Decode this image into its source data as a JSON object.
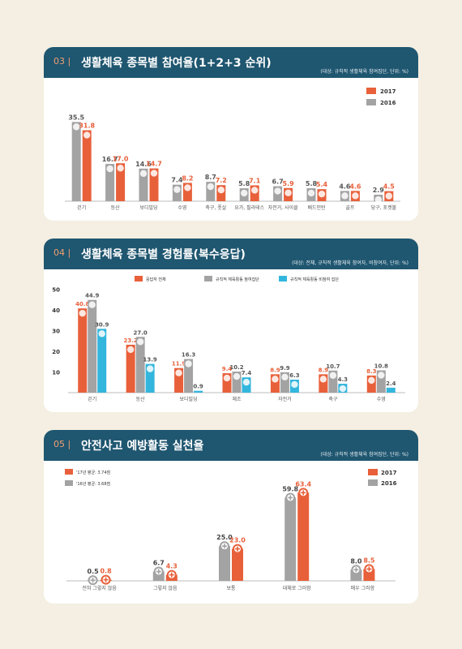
{
  "colors": {
    "orange": "#e8603a",
    "gray": "#a3a3a3",
    "blue": "#33b6dd",
    "header": "#1f5670"
  },
  "sections": [
    {
      "number": "03 |",
      "title": "생활체육 종목별 참여율(1+2+3 순위)",
      "note": "(대상: 규칙적 생활체육 참여집단, 단위: %)",
      "chart_data": {
        "type": "bar",
        "categories": [
          "걷기",
          "등산",
          "보디빌딩",
          "수영",
          "축구, 풋살",
          "요가, 필라테스",
          "자전거, 사이클",
          "배드민턴",
          "골프",
          "당구, 포켓볼"
        ],
        "series": [
          {
            "name": "2016",
            "values": [
              35.5,
              16.7,
              14.6,
              7.4,
              8.7,
              5.8,
              6.7,
              5.8,
              4.6,
              2.9
            ]
          },
          {
            "name": "2017",
            "values": [
              31.8,
              17.0,
              14.7,
              8.2,
              7.2,
              7.1,
              5.9,
              5.4,
              4.6,
              4.5
            ]
          }
        ],
        "legend": [
          "2017",
          "2016"
        ],
        "legend_position": "top-right",
        "ylim": [
          0,
          40
        ]
      }
    },
    {
      "number": "04 |",
      "title": "생활체육 종목별 경험률(복수응답)",
      "note": "(대상: 전체, 규칙적 생활체육 참여자, 비참여자, 단위: %)",
      "chart_data": {
        "type": "bar",
        "categories": [
          "걷기",
          "등산",
          "보디빌딩",
          "체조",
          "자전거",
          "축구",
          "수영"
        ],
        "series": [
          {
            "name": "응답자 전체",
            "values": [
              40.8,
              23.2,
              11.9,
              9.4,
              8.9,
              8.9,
              8.3
            ]
          },
          {
            "name": "규칙적 체육활동 참여집단",
            "values": [
              44.9,
              27.0,
              16.3,
              10.2,
              9.9,
              10.7,
              10.8
            ]
          },
          {
            "name": "규칙적 체육활동 비참여 집단",
            "values": [
              30.9,
              13.9,
              0.9,
              7.4,
              6.3,
              4.3,
              2.4
            ]
          }
        ],
        "yticks": [
          10,
          20,
          30,
          40,
          50
        ],
        "ylim": [
          0,
          55
        ],
        "legend_position": "top"
      }
    },
    {
      "number": "05 |",
      "title": "안전사고 예방활동 실천율",
      "note": "(대상: 규칙적 생활체육 참여집단, 단위: %)",
      "chart_data": {
        "type": "bar",
        "categories": [
          "전혀 그렇지 않음",
          "그렇지 않음",
          "보통",
          "대체로 그러함",
          "매우 그러함"
        ],
        "series": [
          {
            "name": "2016",
            "values": [
              0.5,
              6.7,
              25.0,
              59.8,
              8.0
            ]
          },
          {
            "name": "2017",
            "values": [
              0.8,
              4.3,
              23.0,
              63.4,
              8.5
            ]
          }
        ],
        "legend": [
          "2017",
          "2016"
        ],
        "legend_position": "top-right",
        "annotations": [
          "'17년 평균: 3.74점",
          "'16년 평균: 3.68점"
        ],
        "ylim": [
          0,
          70
        ]
      }
    }
  ]
}
